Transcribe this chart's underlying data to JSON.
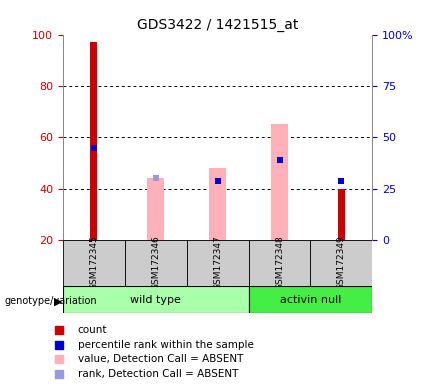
{
  "title": "GDS3422 / 1421515_at",
  "samples": [
    "GSM172345",
    "GSM172346",
    "GSM172347",
    "GSM172348",
    "GSM172349"
  ],
  "red_bars": [
    97,
    0,
    0,
    0,
    40
  ],
  "blue_markers": [
    56,
    0,
    43,
    51,
    43
  ],
  "pink_bars_top": [
    0,
    44,
    48,
    65,
    0
  ],
  "light_blue_markers": [
    0,
    44,
    43,
    51,
    0
  ],
  "ylim": [
    20,
    100
  ],
  "yticks_left": [
    20,
    40,
    60,
    80,
    100
  ],
  "ytick_labels_left": [
    "20",
    "40",
    "60",
    "80",
    "100"
  ],
  "right_tick_positions": [
    20,
    40,
    60,
    80,
    100
  ],
  "ytick_labels_right": [
    "0",
    "25",
    "50",
    "75",
    "100%"
  ],
  "left_axis_color": "#cc0000",
  "right_axis_color": "#0000cc",
  "bg_color": "#ffffff",
  "plot_bg": "#ffffff",
  "bar_red": "#cc0000",
  "bar_blue": "#0000cc",
  "bar_pink": "#ffb0b8",
  "bar_light_blue": "#9999dd",
  "group_bg_wt": "#aaffaa",
  "group_bg_an": "#44ee44",
  "sample_bg": "#cccccc",
  "legend_items": [
    "count",
    "percentile rank within the sample",
    "value, Detection Call = ABSENT",
    "rank, Detection Call = ABSENT"
  ],
  "legend_colors": [
    "#cc0000",
    "#0000cc",
    "#ffb0b8",
    "#9999dd"
  ],
  "wt_label": "wild type",
  "an_label": "activin null",
  "genotype_label": "genotype/variation"
}
